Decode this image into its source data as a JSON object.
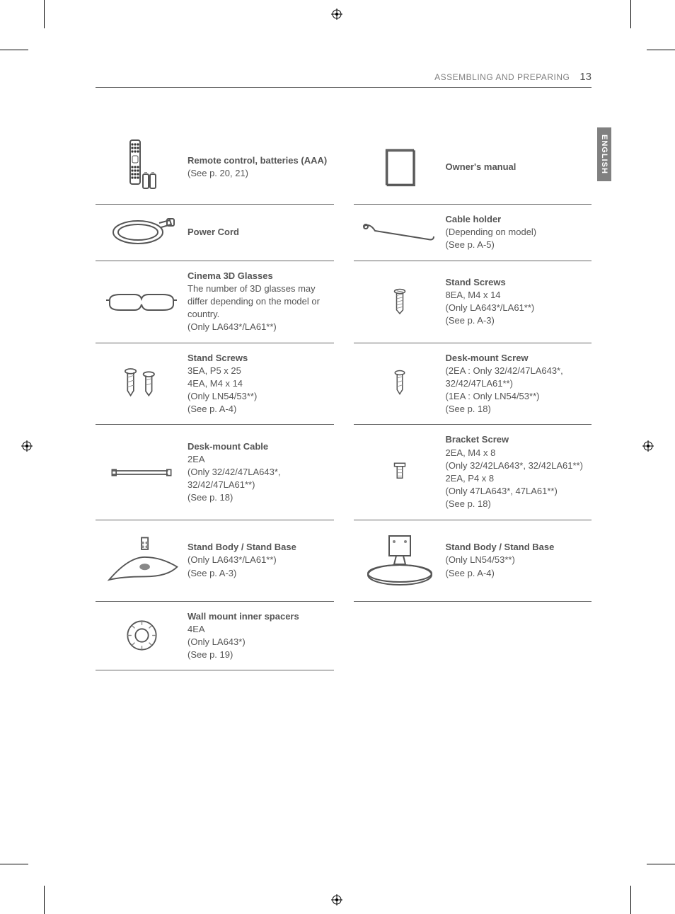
{
  "header": {
    "section_title": "ASSEMBLING AND PREPARING",
    "page_number": "13",
    "language_tab": "ENGLISH"
  },
  "colors": {
    "text": "#555555",
    "light_text": "#808080",
    "rule": "#666666",
    "tab_bg": "#808080",
    "tab_text": "#ffffff",
    "background": "#ffffff"
  },
  "items": [
    {
      "icon": "remote",
      "title": "Remote control, batteries (AAA)",
      "lines": [
        "(See p. 20, 21)"
      ]
    },
    {
      "icon": "manual",
      "title": "Owner's manual",
      "lines": []
    },
    {
      "icon": "powercord",
      "title": "Power Cord",
      "lines": []
    },
    {
      "icon": "cableholder",
      "title": "Cable holder",
      "lines": [
        "(Depending on model)",
        "(See p. A-5)"
      ]
    },
    {
      "icon": "glasses",
      "title": "Cinema 3D Glasses",
      "lines": [
        "The number of 3D glasses may differ depending on the model or country.",
        "(Only LA643*/LA61**)"
      ]
    },
    {
      "icon": "screw1",
      "title": "Stand Screws",
      "lines": [
        "8EA, M4 x 14",
        "(Only LA643*/LA61**)",
        "(See p. A-3)"
      ]
    },
    {
      "icon": "screws2",
      "title": "Stand Screws",
      "lines": [
        "3EA, P5 x 25",
        "4EA, M4 x 14",
        "(Only LN54/53**)",
        "(See p. A-4)"
      ]
    },
    {
      "icon": "deskscrew",
      "title": "Desk-mount Screw",
      "lines": [
        "(2EA : Only 32/42/47LA643*, 32/42/47LA61**)",
        "(1EA : Only LN54/53**)",
        "(See p. 18)"
      ]
    },
    {
      "icon": "deskcable",
      "title": "Desk-mount Cable",
      "lines": [
        "2EA",
        "(Only 32/42/47LA643*, 32/42/47LA61**)",
        "(See p. 18)"
      ]
    },
    {
      "icon": "bracketscrew",
      "title": "Bracket Screw",
      "lines": [
        "2EA, M4 x 8",
        "(Only 32/42LA643*, 32/42LA61**)",
        "2EA, P4 x 8",
        "(Only 47LA643*, 47LA61**)",
        "(See p. 18)"
      ]
    },
    {
      "icon": "stand1",
      "title": "Stand Body / Stand Base",
      "lines": [
        "(Only LA643*/LA61**)",
        "(See p. A-3)"
      ]
    },
    {
      "icon": "stand2",
      "title": "Stand Body / Stand Base",
      "lines": [
        "(Only LN54/53**)",
        "(See p. A-4)"
      ]
    },
    {
      "icon": "spacer",
      "title": "Wall mount inner spacers",
      "lines": [
        "4EA",
        "(Only LA643*)",
        "(See p. 19)"
      ]
    },
    {
      "icon": "",
      "title": "",
      "lines": []
    }
  ]
}
